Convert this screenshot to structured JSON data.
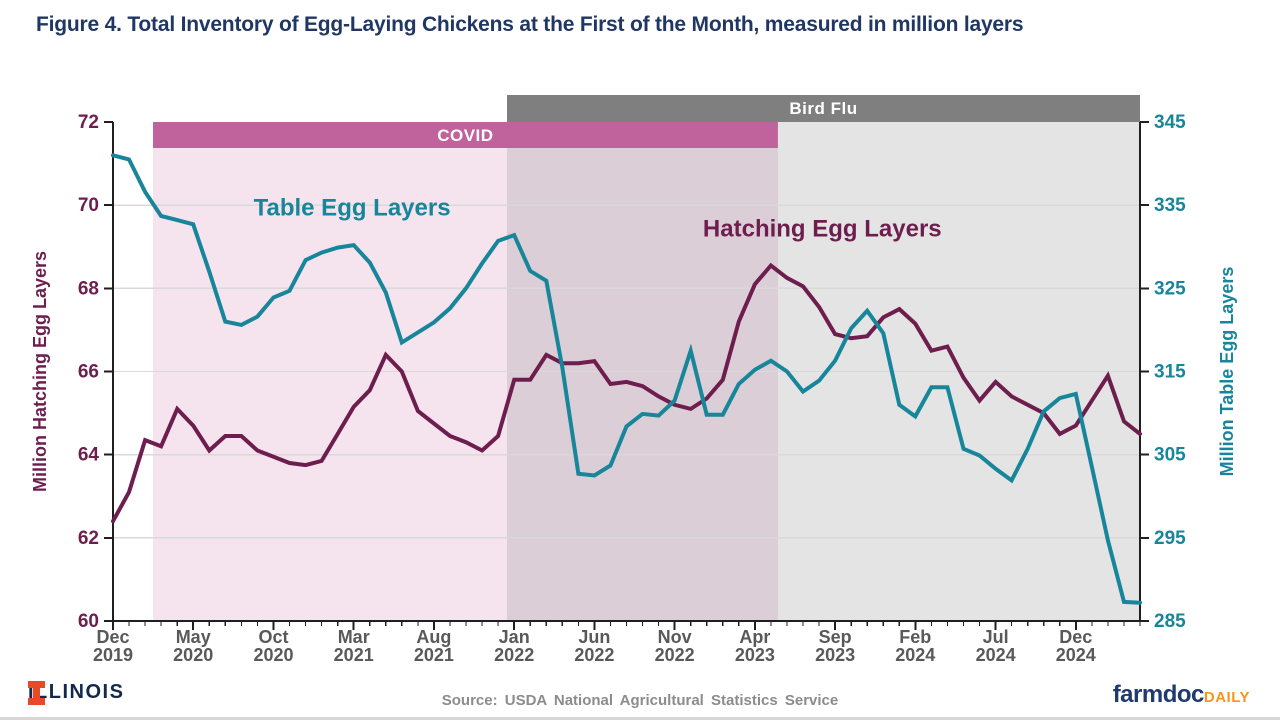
{
  "header": {
    "title": "Figure 4. Total Inventory of Egg-Laying Chickens at the First of the Month, measured in million layers"
  },
  "footer": {
    "illinois_wordmark": "ILLINOIS",
    "source": "Source: USDA National Agricultural Statistics Service",
    "brand": {
      "farmdoc": "farmdoc",
      "daily": "DAILY"
    }
  },
  "colors": {
    "title_navy": "#203764",
    "teal": "#17869a",
    "maroon": "#6d1e4e",
    "tick_gray": "#595959",
    "grid_gray": "#d9d9d9",
    "axis_black": "#1f1f1f",
    "source_gray": "#8c8c8c",
    "illinois_orange": "#e84a27",
    "illinois_navy": "#13294b",
    "farmdoc_navy": "#1f3a6e",
    "farmdoc_orange": "#f7941d",
    "background": "#ffffff"
  },
  "chart_data": {
    "type": "line",
    "grid": "horizontal",
    "months": [
      "Dec 2019",
      "Jan 2020",
      "Feb 2020",
      "Mar 2020",
      "Apr 2020",
      "May 2020",
      "Jun 2020",
      "Jul 2020",
      "Aug 2020",
      "Sep 2020",
      "Oct 2020",
      "Nov 2020",
      "Dec 2020",
      "Jan 2021",
      "Feb 2021",
      "Mar 2021",
      "Apr 2021",
      "May 2021",
      "Jun 2021",
      "Jul 2021",
      "Aug 2021",
      "Sep 2021",
      "Oct 2021",
      "Nov 2021",
      "Dec 2021",
      "Jan 2022",
      "Feb 2022",
      "Mar 2022",
      "Apr 2022",
      "May 2022",
      "Jun 2022",
      "Jul 2022",
      "Aug 2022",
      "Sep 2022",
      "Oct 2022",
      "Nov 2022",
      "Dec 2022",
      "Jan 2023",
      "Feb 2023",
      "Mar 2023",
      "Apr 2023",
      "May 2023",
      "Jun 2023",
      "Jul 2023",
      "Aug 2023",
      "Sep 2023",
      "Oct 2023",
      "Nov 2023",
      "Dec 2023",
      "Jan 2024",
      "Feb 2024",
      "Mar 2024",
      "Apr 2024",
      "May 2024",
      "Jun 2024",
      "Jul 2024",
      "Aug 2024",
      "Sep 2024",
      "Oct 2024",
      "Nov 2024",
      "Dec 2024",
      "Jan 2025",
      "Feb 2025",
      "Mar 2025",
      "Apr 2025"
    ],
    "x_tick_labels": [
      {
        "index": 0,
        "line1": "Dec",
        "line2": "2019"
      },
      {
        "index": 5,
        "line1": "May",
        "line2": "2020"
      },
      {
        "index": 10,
        "line1": "Oct",
        "line2": "2020"
      },
      {
        "index": 15,
        "line1": "Mar",
        "line2": "2021"
      },
      {
        "index": 20,
        "line1": "Aug",
        "line2": "2021"
      },
      {
        "index": 25,
        "line1": "Jan",
        "line2": "2022"
      },
      {
        "index": 30,
        "line1": "Jun",
        "line2": "2022"
      },
      {
        "index": 35,
        "line1": "Nov",
        "line2": "2022"
      },
      {
        "index": 40,
        "line1": "Apr",
        "line2": "2023"
      },
      {
        "index": 45,
        "line1": "Sep",
        "line2": "2023"
      },
      {
        "index": 50,
        "line1": "Feb",
        "line2": "2024"
      },
      {
        "index": 55,
        "line1": "Jul",
        "line2": "2024"
      },
      {
        "index": 60,
        "line1": "Dec",
        "line2": "2024"
      }
    ],
    "left_axis": {
      "title": "Million Hatching Egg Layers",
      "min": 60,
      "max": 72,
      "ticks": [
        60,
        62,
        64,
        66,
        68,
        70,
        72
      ],
      "color": "#6d1e4e"
    },
    "right_axis": {
      "title": "Million Table Egg Layers",
      "min": 285,
      "max": 345,
      "ticks": [
        285,
        295,
        305,
        315,
        325,
        335,
        345
      ],
      "color": "#17869a"
    },
    "bands": [
      {
        "label": "COVID",
        "start_index": 2.49,
        "end_index": 41.43,
        "strip_fill": "#c0639c",
        "region_fill": "#f5e3ee",
        "label_color": "#ffffff",
        "strip_position": "inside-top"
      },
      {
        "label": "Bird Flu",
        "start_index": 24.55,
        "end_index": 64,
        "strip_fill": "#7f7f7f",
        "region_fill": "rgba(127,127,127,0.21)",
        "label_color": "#ffffff",
        "strip_position": "above-top"
      }
    ],
    "series": [
      {
        "name": "Hatching Egg Layers",
        "axis": "left",
        "color": "#6d1e4e",
        "values": [
          62.4,
          63.1,
          64.35,
          64.2,
          65.1,
          64.7,
          64.1,
          64.45,
          64.45,
          64.1,
          63.95,
          63.8,
          63.75,
          63.85,
          64.5,
          65.15,
          65.55,
          66.4,
          66.0,
          65.05,
          64.75,
          64.45,
          64.3,
          64.1,
          64.45,
          65.8,
          65.8,
          66.4,
          66.2,
          66.2,
          66.25,
          65.7,
          65.75,
          65.65,
          65.4,
          65.2,
          65.1,
          65.35,
          65.8,
          67.2,
          68.1,
          68.55,
          68.25,
          68.05,
          67.55,
          66.9,
          66.8,
          66.85,
          67.3,
          67.5,
          67.15,
          66.5,
          66.6,
          65.85,
          65.3,
          65.75,
          65.4,
          65.2,
          65.0,
          64.5,
          64.7,
          65.3,
          65.9,
          64.8,
          64.5
        ]
      },
      {
        "name": "Table Egg Layers",
        "axis": "right",
        "color": "#17869a",
        "values": [
          341.0,
          340.5,
          336.6,
          333.7,
          333.2,
          332.7,
          327.0,
          321.0,
          320.6,
          321.6,
          323.9,
          324.7,
          328.4,
          329.3,
          329.9,
          330.2,
          328.1,
          324.5,
          318.5,
          319.7,
          320.9,
          322.6,
          325.0,
          328.0,
          330.7,
          331.4,
          327.1,
          325.9,
          315.5,
          302.7,
          302.5,
          303.7,
          308.4,
          309.9,
          309.7,
          311.5,
          317.5,
          309.8,
          309.8,
          313.5,
          315.2,
          316.3,
          315.0,
          312.6,
          313.9,
          316.3,
          320.2,
          322.3,
          319.6,
          311.0,
          309.6,
          313.1,
          313.1,
          305.7,
          304.9,
          303.3,
          301.9,
          305.7,
          310.2,
          311.8,
          312.3,
          303.5,
          294.7,
          287.3,
          287.2
        ]
      }
    ],
    "annotations": [
      {
        "text": "Table Egg Layers",
        "x_index": 14.9,
        "y_left": 69.75,
        "color": "#17869a"
      },
      {
        "text": "Hatching Egg Layers",
        "x_index": 44.2,
        "y_left": 69.25,
        "color": "#6d1e4e"
      }
    ]
  }
}
